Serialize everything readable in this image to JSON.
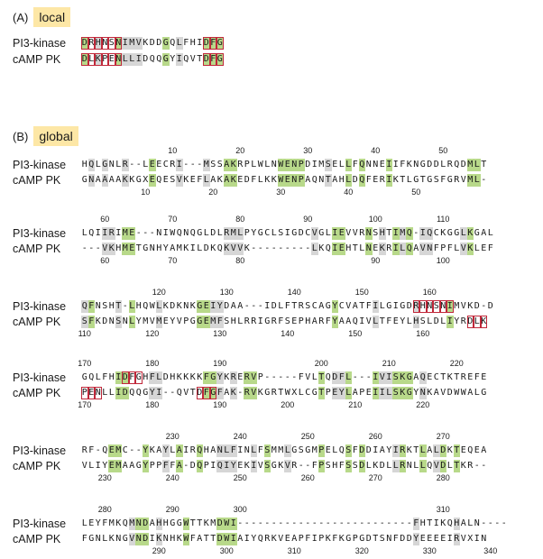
{
  "sections": {
    "a": {
      "letter": "(A)",
      "name": "local"
    },
    "b": {
      "letter": "(B)",
      "name": "global"
    }
  },
  "labels": {
    "top": "PI3-kinase",
    "bottom": "cAMP PK"
  },
  "local": {
    "top": "DRHNSNIMVKDDGQLFHIDFG",
    "bottom": "DLKPENLLIDQQGYIQVTDFG",
    "boxes": [
      [
        0,
        5
      ],
      [
        18,
        20
      ]
    ]
  },
  "blocks": [
    {
      "top": "HQLGNLR--LEECRI---MSSAKRPLWLNWENPDIMSELLFQNNEIIFKNGDDLRQDMLT",
      "bottom": "GNAAAAKKGXEQESVKEFLAKAKEDFLKKWENPAQNTAHLDQFERIKTLGTGSFGRVML-",
      "top_ticks": [
        {
          "col": 13,
          "label": "10"
        },
        {
          "col": 23,
          "label": "20"
        },
        {
          "col": 33,
          "label": "30"
        },
        {
          "col": 43,
          "label": "40"
        },
        {
          "col": 53,
          "label": "50"
        }
      ],
      "bottom_ticks": [
        {
          "col": 9,
          "label": "10"
        },
        {
          "col": 19,
          "label": "20"
        },
        {
          "col": 29,
          "label": "30"
        },
        {
          "col": 39,
          "label": "40"
        },
        {
          "col": 49,
          "label": "50"
        }
      ]
    },
    {
      "top": "LQIIRIME---NIWQNQGLDLRMLPYGCLSIGDCVGLIEVVRNSHTIMQ-IQCKGGLKGAL",
      "bottom": "---VKHMETGNHYAMKILDKQKVVK---------LKQIEHTLNEKRILQAVNFPFLVKLEF",
      "top_ticks": [
        {
          "col": 3,
          "label": "60"
        },
        {
          "col": 13,
          "label": "70"
        },
        {
          "col": 23,
          "label": "80"
        },
        {
          "col": 33,
          "label": "90"
        },
        {
          "col": 43,
          "label": "100"
        },
        {
          "col": 53,
          "label": "110"
        }
      ],
      "bottom_ticks": [
        {
          "col": 3,
          "label": "60"
        },
        {
          "col": 13,
          "label": "70"
        },
        {
          "col": 23,
          "label": "80"
        },
        {
          "col": 43,
          "label": "90"
        },
        {
          "col": 53,
          "label": "100"
        }
      ]
    },
    {
      "top": "QFNSHT-LHQWLKDKNKGEIYDAA---IDLFTRSCAGYCVATFILGIGDRHNSNIMVKD-D",
      "bottom": "SFKDNSNLYMVMEYVPGGEMFSHLRRIGRFSEPHARFYAAQIVLTFEYLHSLDLIYRDLK",
      "top_ticks": [
        {
          "col": 11,
          "label": "120"
        },
        {
          "col": 21,
          "label": "130"
        },
        {
          "col": 31,
          "label": "140"
        },
        {
          "col": 41,
          "label": "150"
        },
        {
          "col": 51,
          "label": "160"
        }
      ],
      "bottom_ticks": [
        {
          "col": 0,
          "label": "110"
        },
        {
          "col": 10,
          "label": "120"
        },
        {
          "col": 20,
          "label": "130"
        },
        {
          "col": 30,
          "label": "140"
        },
        {
          "col": 40,
          "label": "150"
        },
        {
          "col": 50,
          "label": "160"
        }
      ]
    },
    {
      "top": "GQLFHIDFGHFLDHKKKKFGYKRERVP-----FVLTQDFL---IVISKGAQECTKTREFE",
      "bottom": "PENLLIDQQGYI--QVTDFGFAK-RVKGRTWXLCGTPEYLAPEIILSKGYNKAVDWWALG",
      "top_ticks": [
        {
          "col": 0,
          "label": "170"
        },
        {
          "col": 10,
          "label": "180"
        },
        {
          "col": 20,
          "label": "190"
        },
        {
          "col": 35,
          "label": "200"
        },
        {
          "col": 45,
          "label": "210"
        },
        {
          "col": 55,
          "label": "220"
        }
      ],
      "bottom_ticks": [
        {
          "col": 0,
          "label": "170"
        },
        {
          "col": 10,
          "label": "180"
        },
        {
          "col": 20,
          "label": "190"
        },
        {
          "col": 30,
          "label": "200"
        },
        {
          "col": 40,
          "label": "210"
        },
        {
          "col": 50,
          "label": "220"
        }
      ]
    },
    {
      "top": "RF-QEMC--YKAYLAIRQHANLFINLFSMMLGSGMPELQSFDDIAYIRKTLALDKTEQEA",
      "bottom": "VLIYEMAAGYPPFFA-DQPIQIYEKIVSGKVR--FPSHFSSDLKDLLRNLLQVDLTKR--",
      "top_ticks": [
        {
          "col": 13,
          "label": "230"
        },
        {
          "col": 23,
          "label": "240"
        },
        {
          "col": 33,
          "label": "250"
        },
        {
          "col": 43,
          "label": "260"
        },
        {
          "col": 53,
          "label": "270"
        }
      ],
      "bottom_ticks": [
        {
          "col": 3,
          "label": "230"
        },
        {
          "col": 13,
          "label": "240"
        },
        {
          "col": 23,
          "label": "250"
        },
        {
          "col": 33,
          "label": "260"
        },
        {
          "col": 43,
          "label": "270"
        },
        {
          "col": 53,
          "label": "280"
        }
      ]
    },
    {
      "top": "LEYFMKQMNDAHHGGWTTKMDWI--------------------------FHTIKQHALN----",
      "bottom": "FGNLKNGVNDIKNHKWFATTDWIAIYQRKVEAPFIPKFKGPGDTSNFDDYEEEEIRVXIN",
      "top_ticks": [
        {
          "col": 3,
          "label": "280"
        },
        {
          "col": 13,
          "label": "290"
        },
        {
          "col": 23,
          "label": "300"
        },
        {
          "col": 53,
          "label": "310"
        }
      ],
      "bottom_ticks": [
        {
          "col": 11,
          "label": "290"
        },
        {
          "col": 21,
          "label": "300"
        },
        {
          "col": 31,
          "label": "310"
        },
        {
          "col": 41,
          "label": "320"
        },
        {
          "col": 51,
          "label": "330"
        },
        {
          "col": 60,
          "label": "340"
        }
      ]
    }
  ],
  "boxes_global": [
    {
      "block": 2,
      "row": "top",
      "start": 49,
      "end": 54
    },
    {
      "block": 2,
      "row": "bottom",
      "start": 57,
      "end": 59
    },
    {
      "block": 3,
      "row": "bottom",
      "start": 0,
      "end": 2
    },
    {
      "block": 3,
      "row": "top",
      "start": 6,
      "end": 8
    },
    {
      "block": 3,
      "row": "bottom",
      "start": 17,
      "end": 19
    }
  ],
  "colors": {
    "identical": "#b8d98a",
    "similar": "#d6d6d6",
    "box": "#c0283a",
    "tag": "#fde7a6"
  }
}
